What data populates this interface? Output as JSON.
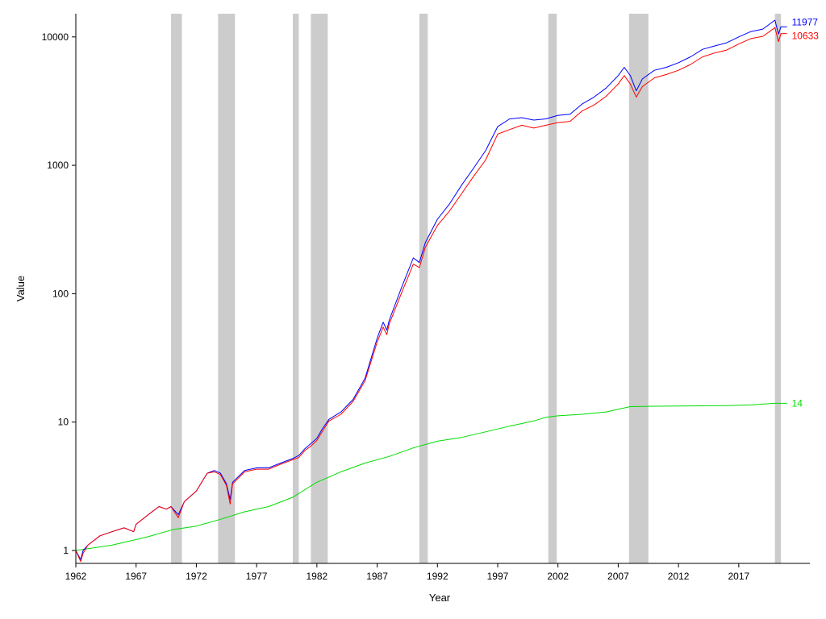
{
  "chart_data": {
    "type": "line",
    "title": "",
    "xlabel": "Year",
    "ylabel": "Value",
    "y_scale": "log",
    "xlim": [
      1962,
      2021
    ],
    "ylim": [
      1,
      14000
    ],
    "grid": false,
    "x_ticks": [
      1962,
      1967,
      1972,
      1977,
      1982,
      1987,
      1992,
      1997,
      2002,
      2007,
      2012,
      2017
    ],
    "x_tick_labels": [
      "1962",
      "1967",
      "1972",
      "1977",
      "1982",
      "1987",
      "1992",
      "1997",
      "2002",
      "2007",
      "2012",
      "2017"
    ],
    "y_ticks": [
      1,
      10,
      100,
      1000,
      10000
    ],
    "y_tick_labels": [
      "1",
      "10",
      "100",
      "1000",
      "10000"
    ],
    "shaded_periods": [
      [
        1969.9,
        1970.8
      ],
      [
        1973.8,
        1975.2
      ],
      [
        1980.0,
        1980.5
      ],
      [
        1981.5,
        1982.9
      ],
      [
        1990.5,
        1991.2
      ],
      [
        2001.2,
        2001.9
      ],
      [
        2007.9,
        2009.5
      ],
      [
        2020.0,
        2020.5
      ]
    ],
    "shade_color": "#cccccc",
    "series": [
      {
        "color": "#0000ff",
        "end_label": "11977",
        "x": [
          1962.0,
          1962.4,
          1962.6,
          1963,
          1964,
          1965,
          1966,
          1966.8,
          1967,
          1968,
          1968.9,
          1969.5,
          1969.9,
          1970.5,
          1971,
          1972,
          1972.9,
          1973.5,
          1974,
          1974.5,
          1974.8,
          1975,
          1976,
          1977,
          1978,
          1979,
          1980,
          1980.5,
          1981,
          1981.5,
          1982,
          1982.5,
          1983,
          1984,
          1985,
          1986,
          1987,
          1987.5,
          1987.8,
          1988,
          1989,
          1990,
          1990.5,
          1991,
          1992,
          1993,
          1994,
          1995,
          1996,
          1997,
          1998,
          1999,
          2000,
          2001,
          2002,
          2003,
          2004,
          2005,
          2006,
          2007,
          2007.5,
          2008,
          2008.5,
          2009,
          2010,
          2011,
          2012,
          2013,
          2014,
          2015,
          2016,
          2017,
          2018,
          2019,
          2020,
          2020.3,
          2020.5,
          2021
        ],
        "y": [
          1.0,
          0.85,
          1.0,
          1.1,
          1.3,
          1.4,
          1.5,
          1.4,
          1.6,
          1.9,
          2.2,
          2.1,
          2.2,
          1.9,
          2.4,
          2.9,
          4.0,
          4.2,
          4.0,
          3.3,
          2.5,
          3.4,
          4.2,
          4.4,
          4.4,
          4.8,
          5.2,
          5.5,
          6.2,
          6.8,
          7.5,
          9.0,
          10.5,
          12,
          15,
          22,
          45,
          60,
          52,
          62,
          110,
          190,
          175,
          250,
          380,
          500,
          700,
          950,
          1300,
          2000,
          2300,
          2350,
          2250,
          2300,
          2450,
          2500,
          3000,
          3400,
          4000,
          5000,
          5800,
          5000,
          3800,
          4700,
          5500,
          5800,
          6300,
          7000,
          8000,
          8500,
          9000,
          10000,
          11000,
          11500,
          13500,
          10500,
          12000,
          11977
        ]
      },
      {
        "color": "#ff0000",
        "end_label": "10633",
        "x": [
          1962.0,
          1962.4,
          1962.6,
          1963,
          1964,
          1965,
          1966,
          1966.8,
          1967,
          1968,
          1968.9,
          1969.5,
          1969.9,
          1970.5,
          1971,
          1972,
          1972.9,
          1973.5,
          1974,
          1974.5,
          1974.8,
          1975,
          1976,
          1977,
          1978,
          1979,
          1980,
          1980.5,
          1981,
          1981.5,
          1982,
          1982.5,
          1983,
          1984,
          1985,
          1986,
          1987,
          1987.5,
          1987.8,
          1988,
          1989,
          1990,
          1990.5,
          1991,
          1992,
          1993,
          1994,
          1995,
          1996,
          1997,
          1998,
          1999,
          2000,
          2001,
          2002,
          2003,
          2004,
          2005,
          2006,
          2007,
          2007.5,
          2008,
          2008.5,
          2009,
          2010,
          2011,
          2012,
          2013,
          2014,
          2015,
          2016,
          2017,
          2018,
          2019,
          2020,
          2020.3,
          2020.5,
          2021
        ],
        "y": [
          1.0,
          0.82,
          0.95,
          1.1,
          1.3,
          1.4,
          1.5,
          1.4,
          1.6,
          1.9,
          2.2,
          2.1,
          2.2,
          1.8,
          2.4,
          2.9,
          4.0,
          4.1,
          3.9,
          3.2,
          2.3,
          3.3,
          4.1,
          4.3,
          4.3,
          4.7,
          5.1,
          5.3,
          6.0,
          6.5,
          7.2,
          8.6,
          10.2,
          11.5,
          14.5,
          21,
          42,
          55,
          48,
          58,
          100,
          170,
          160,
          230,
          340,
          440,
          600,
          820,
          1100,
          1750,
          1900,
          2050,
          1950,
          2050,
          2150,
          2200,
          2650,
          2950,
          3450,
          4300,
          5000,
          4300,
          3400,
          4100,
          4800,
          5100,
          5500,
          6100,
          7000,
          7500,
          7900,
          8800,
          9700,
          10100,
          11800,
          9200,
          10600,
          10633
        ]
      },
      {
        "color": "#00dd00",
        "end_label": "14",
        "x": [
          1962,
          1965,
          1968,
          1970,
          1972,
          1974,
          1976,
          1978,
          1980,
          1982,
          1984,
          1986,
          1988,
          1990,
          1992,
          1994,
          1996,
          1998,
          2000,
          2001,
          2002,
          2004,
          2006,
          2008,
          2010,
          2012,
          2014,
          2016,
          2018,
          2019,
          2020,
          2021
        ],
        "y": [
          1.0,
          1.1,
          1.28,
          1.45,
          1.55,
          1.75,
          2.0,
          2.2,
          2.6,
          3.4,
          4.1,
          4.8,
          5.4,
          6.3,
          7.1,
          7.6,
          8.4,
          9.3,
          10.2,
          10.9,
          11.2,
          11.5,
          12.0,
          13.2,
          13.3,
          13.35,
          13.4,
          13.45,
          13.6,
          13.8,
          14.0,
          14.0
        ]
      }
    ]
  }
}
